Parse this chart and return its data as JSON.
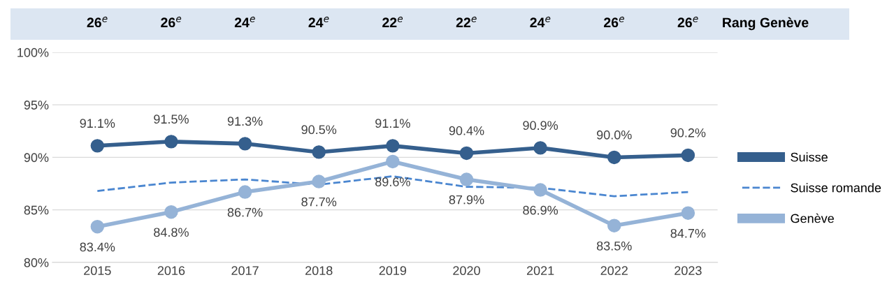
{
  "chart_data": {
    "type": "line",
    "categories": [
      "2015",
      "2016",
      "2017",
      "2018",
      "2019",
      "2020",
      "2021",
      "2022",
      "2023"
    ],
    "series": [
      {
        "name": "Suisse",
        "color": "#355f8d",
        "marker": "circle",
        "line_style": "solid",
        "values": [
          91.1,
          91.5,
          91.3,
          90.5,
          91.1,
          90.4,
          90.9,
          90.0,
          90.2
        ],
        "value_labels": [
          "91.1%",
          "91.5%",
          "91.3%",
          "90.5%",
          "91.1%",
          "90.4%",
          "90.9%",
          "90.0%",
          "90.2%"
        ]
      },
      {
        "name": "Suisse romande",
        "color": "#4a86d0",
        "marker": "none",
        "line_style": "dashed",
        "values": [
          86.8,
          87.6,
          87.9,
          87.4,
          88.2,
          87.2,
          87.1,
          86.3,
          86.7
        ]
      },
      {
        "name": "Genève",
        "color": "#95b3d7",
        "marker": "circle",
        "line_style": "solid",
        "values": [
          83.4,
          84.8,
          86.7,
          87.7,
          89.6,
          87.9,
          86.9,
          83.5,
          84.7
        ],
        "value_labels": [
          "83.4%",
          "84.8%",
          "86.7%",
          "87.7%",
          "89.6%",
          "87.9%",
          "86.9%",
          "83.5%",
          "84.7%"
        ]
      }
    ],
    "ylim": [
      80,
      100
    ],
    "yticks": [
      {
        "value": 80,
        "label": "80%"
      },
      {
        "value": 85,
        "label": "85%"
      },
      {
        "value": 90,
        "label": "90%"
      },
      {
        "value": 95,
        "label": "95%"
      },
      {
        "value": 100,
        "label": "100%"
      }
    ],
    "grid": "y",
    "legend": "right",
    "annotations": [
      "26$^{e}$",
      "26$^{e}$",
      "24$^{e}$",
      "24$^{e}$",
      "22$^{e}$",
      "22$^{e}$",
      "24$^{e}$",
      "26$^{e}$",
      "26$^{e}$",
      "Rang Genève"
    ]
  }
}
